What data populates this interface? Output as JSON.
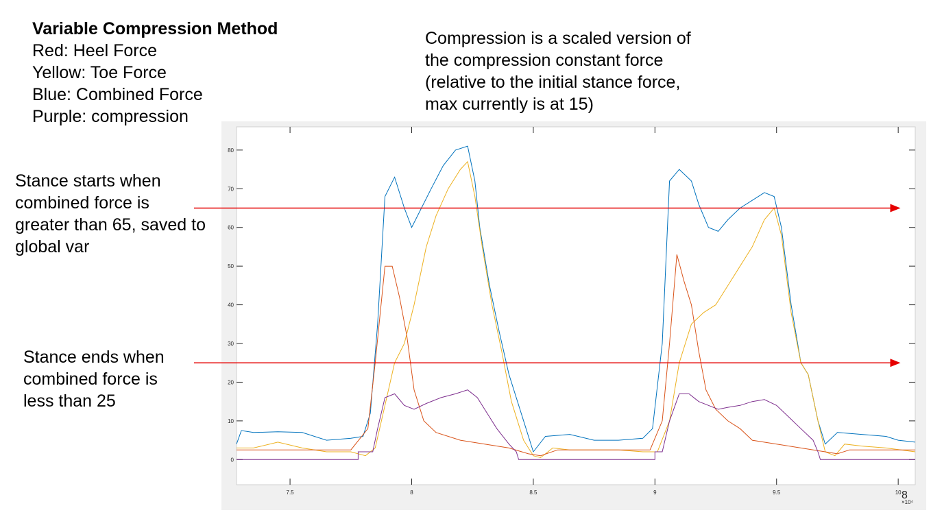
{
  "header": {
    "title": "Variable Compression Method",
    "legend_lines": [
      "Red: Heel Force",
      "Yellow: Toe Force",
      "Blue: Combined Force",
      "Purple: compression"
    ]
  },
  "note": {
    "lines": [
      "Compression is a scaled version of",
      "the compression constant force",
      "(relative to the initial stance force,",
      "max currently is at 15)"
    ]
  },
  "annotations": {
    "stance_start": [
      "Stance starts when",
      "combined force is",
      "greater than 65, saved to",
      "global var"
    ],
    "stance_end": [
      "Stance ends when",
      "combined force is",
      "less than 25"
    ]
  },
  "colors": {
    "heel": "#d95319",
    "toe": "#edb120",
    "combined": "#0072bd",
    "compression": "#7e2f8e",
    "arrow": "#e60000",
    "axes_bg": "#ffffff",
    "figure_bg": "#f0f0f0"
  },
  "chart_data": {
    "type": "line",
    "xlim": [
      72800,
      100700
    ],
    "ylim": [
      -6.5,
      86
    ],
    "x_ticks": [
      75000,
      80000,
      85000,
      90000,
      95000,
      100000
    ],
    "x_tick_labels": [
      "7.5",
      "8",
      "8.5",
      "9",
      "9.5",
      "10"
    ],
    "x_exponent": "×10⁴",
    "y_ticks": [
      0,
      10,
      20,
      30,
      40,
      50,
      60,
      70,
      80
    ],
    "y_tick_labels": [
      "0",
      "10",
      "20",
      "30",
      "40",
      "50",
      "60",
      "70",
      "80"
    ],
    "x_trailing_label": "8",
    "thresholds": [
      65,
      25
    ],
    "series": [
      {
        "color_key": "combined",
        "points": [
          [
            72800,
            4
          ],
          [
            73000,
            7.5
          ],
          [
            73500,
            7
          ],
          [
            74500,
            7.2
          ],
          [
            75500,
            7
          ],
          [
            76500,
            5
          ],
          [
            77500,
            5.5
          ],
          [
            78000,
            6
          ],
          [
            78300,
            12
          ],
          [
            78600,
            35
          ],
          [
            78900,
            68
          ],
          [
            79300,
            73
          ],
          [
            79700,
            65
          ],
          [
            80000,
            60
          ],
          [
            80400,
            65
          ],
          [
            80800,
            70
          ],
          [
            81300,
            76
          ],
          [
            81800,
            80
          ],
          [
            82300,
            81
          ],
          [
            82600,
            72
          ],
          [
            82800,
            60
          ],
          [
            83200,
            45
          ],
          [
            83600,
            33
          ],
          [
            84000,
            22
          ],
          [
            84500,
            12
          ],
          [
            85000,
            2
          ],
          [
            85500,
            6
          ],
          [
            86500,
            6.5
          ],
          [
            87500,
            5
          ],
          [
            88500,
            5
          ],
          [
            89500,
            5.5
          ],
          [
            89900,
            8
          ],
          [
            90300,
            30
          ],
          [
            90600,
            72
          ],
          [
            91000,
            75
          ],
          [
            91500,
            72
          ],
          [
            91800,
            66
          ],
          [
            92200,
            60
          ],
          [
            92600,
            59
          ],
          [
            93000,
            62
          ],
          [
            93500,
            65
          ],
          [
            94000,
            67
          ],
          [
            94500,
            69
          ],
          [
            94900,
            68
          ],
          [
            95200,
            60
          ],
          [
            95600,
            40
          ],
          [
            96000,
            25
          ],
          [
            96300,
            22
          ],
          [
            96700,
            10
          ],
          [
            97000,
            4
          ],
          [
            97500,
            7
          ],
          [
            98500,
            6.5
          ],
          [
            99500,
            6
          ],
          [
            100000,
            5
          ],
          [
            100700,
            4.5
          ]
        ]
      },
      {
        "color_key": "toe",
        "points": [
          [
            72800,
            3
          ],
          [
            73500,
            3
          ],
          [
            74500,
            4.5
          ],
          [
            75500,
            3
          ],
          [
            76500,
            2
          ],
          [
            77500,
            2
          ],
          [
            78100,
            1
          ],
          [
            78500,
            3
          ],
          [
            78900,
            14
          ],
          [
            79300,
            25
          ],
          [
            79700,
            30
          ],
          [
            80100,
            40
          ],
          [
            80600,
            55
          ],
          [
            81000,
            63
          ],
          [
            81500,
            70
          ],
          [
            82000,
            75
          ],
          [
            82300,
            77
          ],
          [
            82600,
            68
          ],
          [
            82900,
            55
          ],
          [
            83300,
            40
          ],
          [
            83700,
            28
          ],
          [
            84100,
            15
          ],
          [
            84600,
            5
          ],
          [
            85000,
            1
          ],
          [
            85300,
            0.5
          ],
          [
            85800,
            3
          ],
          [
            86500,
            2.5
          ],
          [
            87500,
            2.5
          ],
          [
            88500,
            2.5
          ],
          [
            89500,
            2
          ],
          [
            90100,
            2
          ],
          [
            90600,
            10
          ],
          [
            91000,
            25
          ],
          [
            91500,
            35
          ],
          [
            92000,
            38
          ],
          [
            92500,
            40
          ],
          [
            93000,
            45
          ],
          [
            93500,
            50
          ],
          [
            94000,
            55
          ],
          [
            94500,
            62
          ],
          [
            94900,
            65
          ],
          [
            95200,
            58
          ],
          [
            95600,
            38
          ],
          [
            96000,
            25
          ],
          [
            96300,
            22
          ],
          [
            96700,
            10
          ],
          [
            97000,
            2
          ],
          [
            97400,
            1
          ],
          [
            97800,
            4
          ],
          [
            98500,
            3.5
          ],
          [
            99500,
            3
          ],
          [
            100700,
            2
          ]
        ]
      },
      {
        "color_key": "heel",
        "points": [
          [
            72800,
            2.5
          ],
          [
            75000,
            2.5
          ],
          [
            77500,
            2.5
          ],
          [
            78200,
            8
          ],
          [
            78500,
            25
          ],
          [
            78900,
            50
          ],
          [
            79200,
            50
          ],
          [
            79500,
            42
          ],
          [
            79800,
            32
          ],
          [
            80100,
            18
          ],
          [
            80500,
            10
          ],
          [
            81000,
            7
          ],
          [
            82000,
            5
          ],
          [
            83000,
            4
          ],
          [
            84000,
            3
          ],
          [
            84800,
            1.5
          ],
          [
            85300,
            1
          ],
          [
            86000,
            2.5
          ],
          [
            87000,
            2.5
          ],
          [
            88500,
            2.5
          ],
          [
            89800,
            2.5
          ],
          [
            90300,
            10
          ],
          [
            90600,
            30
          ],
          [
            90900,
            53
          ],
          [
            91200,
            46
          ],
          [
            91500,
            40
          ],
          [
            91800,
            28
          ],
          [
            92100,
            18
          ],
          [
            92500,
            13
          ],
          [
            93000,
            10
          ],
          [
            93500,
            8
          ],
          [
            94000,
            5
          ],
          [
            95000,
            4
          ],
          [
            96000,
            3
          ],
          [
            97000,
            2
          ],
          [
            97500,
            1.5
          ],
          [
            98000,
            2.5
          ],
          [
            100700,
            2.5
          ]
        ]
      },
      {
        "color_key": "compression",
        "points": [
          [
            72800,
            0
          ],
          [
            77800,
            0
          ],
          [
            77800,
            2
          ],
          [
            78400,
            2
          ],
          [
            78600,
            8
          ],
          [
            78900,
            16
          ],
          [
            79300,
            17
          ],
          [
            79700,
            14
          ],
          [
            80100,
            13
          ],
          [
            80600,
            14.5
          ],
          [
            81200,
            16
          ],
          [
            81800,
            17
          ],
          [
            82300,
            18
          ],
          [
            82700,
            16
          ],
          [
            83100,
            12
          ],
          [
            83500,
            8
          ],
          [
            84000,
            4
          ],
          [
            84300,
            2
          ],
          [
            84400,
            0
          ],
          [
            90000,
            0
          ],
          [
            90000,
            2
          ],
          [
            90300,
            2
          ],
          [
            90600,
            10
          ],
          [
            91000,
            17
          ],
          [
            91400,
            17
          ],
          [
            91800,
            15
          ],
          [
            92200,
            14
          ],
          [
            92600,
            13
          ],
          [
            93000,
            13.5
          ],
          [
            93500,
            14
          ],
          [
            94000,
            15
          ],
          [
            94500,
            15.5
          ],
          [
            95000,
            14
          ],
          [
            95500,
            11
          ],
          [
            96000,
            8
          ],
          [
            96500,
            5
          ],
          [
            96700,
            2
          ],
          [
            96800,
            0
          ],
          [
            100700,
            0
          ]
        ]
      }
    ]
  }
}
